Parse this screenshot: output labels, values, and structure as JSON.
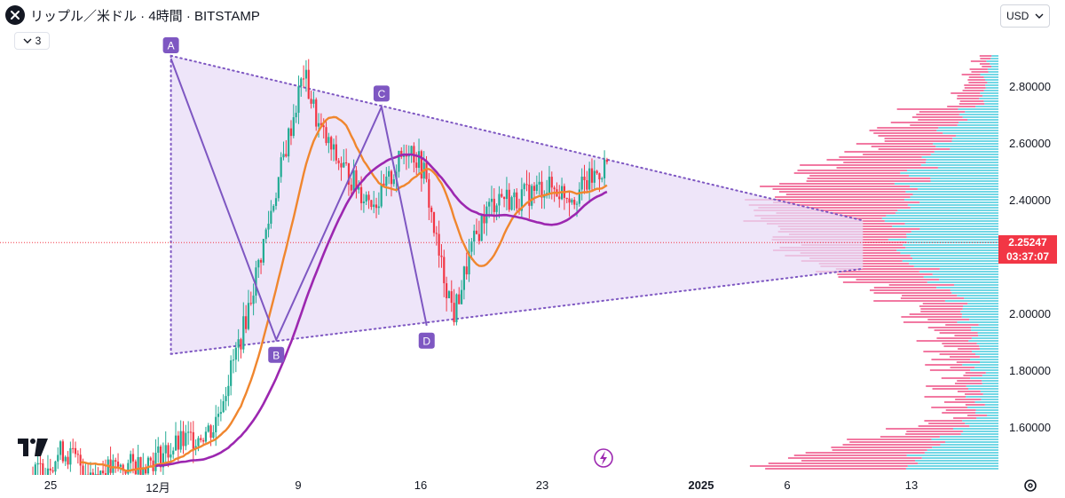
{
  "header": {
    "title": "リップル／米ドル · 4時間 · BITSTAMP",
    "symbol_icon": "xrp-x-icon",
    "indicator_count": "3",
    "currency": "USD"
  },
  "colors": {
    "up": "#22ab94",
    "down": "#f23645",
    "ma_fast": "#f0862e",
    "ma_slow": "#9c27b0",
    "pattern_fill": "#e8dcf7",
    "pattern_line": "#7e57c2",
    "vp_up": "#5ad0e0",
    "vp_down": "#f06292",
    "price_tag": "#f23645"
  },
  "current_price": "2.25247",
  "countdown": "03:37:07",
  "chart_data": {
    "type": "candlestick",
    "symbol": "リップル／米ドル",
    "interval": "4時間",
    "exchange": "BITSTAMP",
    "y_axis": {
      "ticks": [
        "2.80000",
        "2.60000",
        "2.40000",
        "2.00000",
        "1.80000",
        "1.60000"
      ],
      "ylim": [
        1.45,
        3.0
      ]
    },
    "x_axis": {
      "labels": [
        "25",
        "12月",
        "9",
        "16",
        "23",
        "2025",
        "6",
        "13"
      ]
    },
    "pattern_points": [
      {
        "label": "A",
        "date": "2024-12-03",
        "price": 2.9
      },
      {
        "label": "B",
        "date": "2024-12-10",
        "price": 1.91
      },
      {
        "label": "C",
        "date": "2024-12-17",
        "price": 2.73
      },
      {
        "label": "D",
        "date": "2024-12-20",
        "price": 1.96
      }
    ],
    "triangle": {
      "upper": [
        {
          "date": "2024-12-03",
          "price": 2.91
        },
        {
          "date": "2025-01-18",
          "price": 2.33
        }
      ],
      "lower": [
        {
          "date": "2024-12-03",
          "price": 1.86
        },
        {
          "date": "2025-01-18",
          "price": 2.16
        }
      ]
    },
    "current_price": 2.25247
  }
}
